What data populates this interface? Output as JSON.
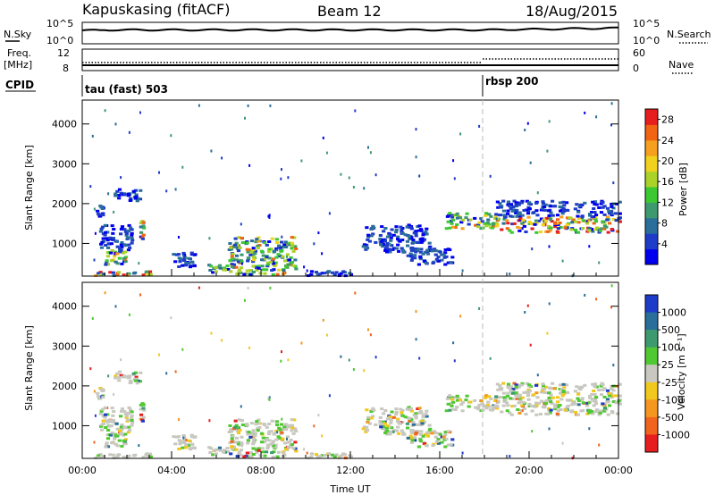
{
  "header": {
    "site": "Kapuskasing (fitACF)",
    "beam": "Beam 12",
    "date": "18/Aug/2015"
  },
  "top_panels": {
    "nsky_label": "N.Sky",
    "nsky_ticks": [
      "10^5",
      "10^0"
    ],
    "nsearch_label": "N.Search",
    "nsearch_ticks": [
      "10^5",
      "10^0"
    ],
    "freq_label_1": "Freq.",
    "freq_label_2": "[MHz]",
    "freq_ticks": [
      "12",
      "8"
    ],
    "nave_label": "Nave",
    "nave_ticks": [
      "60",
      "0"
    ],
    "cpid_label": "CPID",
    "cpid_modes": [
      {
        "label": "tau (fast) 503",
        "start_hour": 0
      },
      {
        "label": "rbsp 200",
        "start_hour": 18.0
      }
    ]
  },
  "chart_data": [
    {
      "type": "heatmap",
      "title": "",
      "ylabel": "Slant Range [km]",
      "xlabel": "",
      "x_range_hours": [
        0,
        24
      ],
      "ylim": [
        180,
        4600
      ],
      "y_ticks": [
        "4000",
        "3000",
        "2000",
        "1000"
      ],
      "y_tick_values": [
        4000,
        3000,
        2000,
        1000
      ],
      "colorbar": {
        "label": "Power [dB]",
        "ticks": [
          "28",
          "24",
          "20",
          "16",
          "12",
          "8",
          "4"
        ],
        "tick_values": [
          28,
          24,
          20,
          16,
          12,
          8,
          4
        ],
        "range": [
          0,
          30
        ],
        "colors": [
          "#0000ee",
          "#1e3cc8",
          "#2a6e9a",
          "#3c9a6e",
          "#3cc832",
          "#aad228",
          "#f0d21e",
          "#f5a01e",
          "#f06414",
          "#e61e1e"
        ]
      },
      "grid": false
    },
    {
      "type": "heatmap",
      "title": "",
      "ylabel": "Slant Range [km]",
      "xlabel": "Time UT",
      "x_range_hours": [
        0,
        24
      ],
      "x_ticks": [
        "00:00",
        "04:00",
        "08:00",
        "12:00",
        "16:00",
        "20:00",
        "00:00"
      ],
      "x_tick_values": [
        0,
        4,
        8,
        12,
        16,
        20,
        24
      ],
      "ylim": [
        180,
        4600
      ],
      "y_ticks": [
        "4000",
        "3000",
        "2000",
        "1000"
      ],
      "y_tick_values": [
        4000,
        3000,
        2000,
        1000
      ],
      "colorbar": {
        "label": "Velocity [m s⁻¹]",
        "ticks": [
          "1000",
          "500",
          "100",
          "25",
          "-25",
          "-100",
          "-500",
          "-1000"
        ],
        "colors": [
          "#1e3cc8",
          "#2a6e9a",
          "#3c9a6e",
          "#50c832",
          "#c8c8c0",
          "#f0c81e",
          "#f5961e",
          "#f0641e",
          "#e61e1e"
        ]
      },
      "grid": false
    }
  ],
  "scatter_regions": [
    {
      "t0": 0.5,
      "t1": 3.0,
      "r0": 220,
      "r1": 330,
      "kind": "strong"
    },
    {
      "t0": 0.9,
      "t1": 2.0,
      "r0": 500,
      "r1": 900,
      "kind": "mid"
    },
    {
      "t0": 0.7,
      "t1": 2.2,
      "r0": 900,
      "r1": 1500,
      "kind": "weak"
    },
    {
      "t0": 2.5,
      "t1": 2.7,
      "r0": 1100,
      "r1": 1600,
      "kind": "mid"
    },
    {
      "t0": 1.4,
      "t1": 2.6,
      "r0": 2100,
      "r1": 2400,
      "kind": "weak"
    },
    {
      "t0": 0.6,
      "t1": 0.9,
      "r0": 1700,
      "r1": 2000,
      "kind": "weak"
    },
    {
      "t0": 4.0,
      "t1": 5.0,
      "r0": 400,
      "r1": 800,
      "kind": "weak"
    },
    {
      "t0": 5.5,
      "t1": 9.5,
      "r0": 250,
      "r1": 500,
      "kind": "mid"
    },
    {
      "t0": 6.5,
      "t1": 9.5,
      "r0": 500,
      "r1": 1200,
      "kind": "mid"
    },
    {
      "t0": 10.0,
      "t1": 12.0,
      "r0": 220,
      "r1": 350,
      "kind": "weak"
    },
    {
      "t0": 12.5,
      "t1": 15.5,
      "r0": 800,
      "r1": 1500,
      "kind": "weak"
    },
    {
      "t0": 14.5,
      "t1": 16.5,
      "r0": 500,
      "r1": 900,
      "kind": "weak"
    },
    {
      "t0": 16.2,
      "t1": 18.5,
      "r0": 1400,
      "r1": 1800,
      "kind": "mid"
    },
    {
      "t0": 18.5,
      "t1": 24.0,
      "r0": 1300,
      "r1": 1700,
      "kind": "strong"
    },
    {
      "t0": 18.5,
      "t1": 24.0,
      "r0": 1700,
      "r1": 2100,
      "kind": "weak"
    }
  ]
}
